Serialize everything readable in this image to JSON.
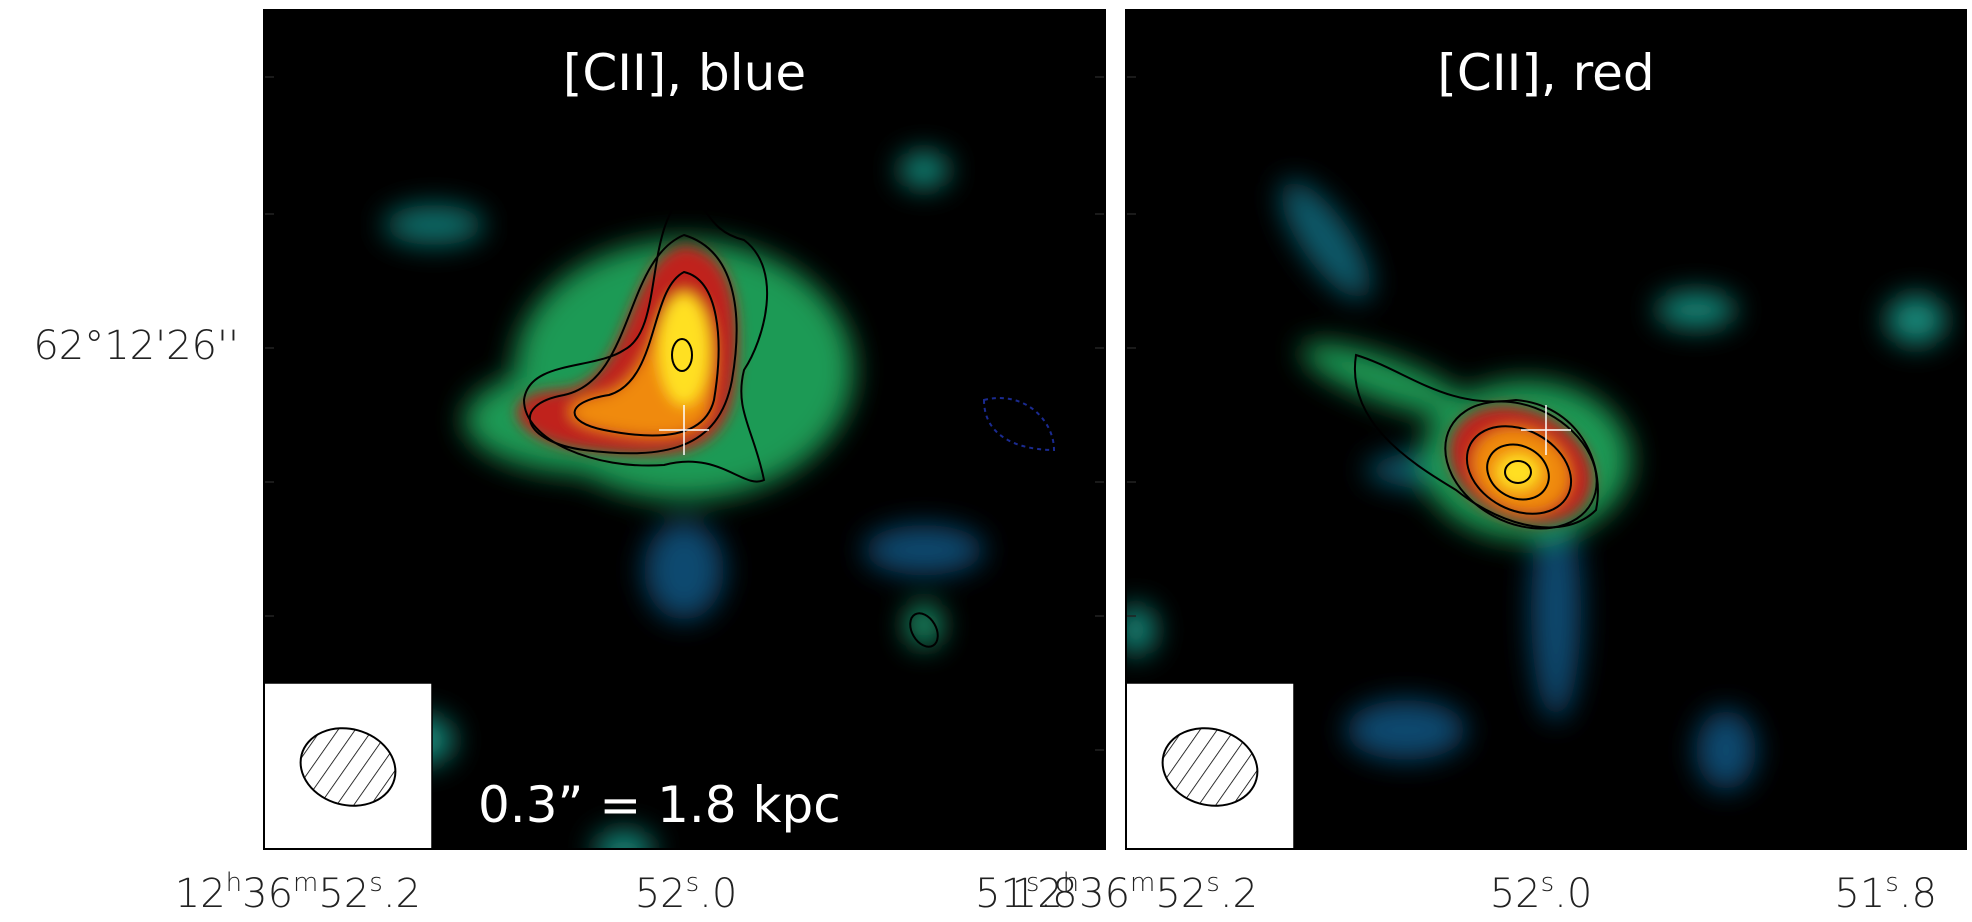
{
  "y_label": "62°12'26''",
  "panels": [
    {
      "title": "[CII], blue",
      "scale_label": "0.3” = 1.8 kpc",
      "x_labels": [
        [
          {
            "text": "12"
          },
          {
            "text": "h",
            "sup": true
          },
          {
            "text": "36"
          },
          {
            "text": "m",
            "sup": true
          },
          {
            "text": "52"
          },
          {
            "text": "s",
            "sup": true
          },
          {
            "text": ".2"
          }
        ],
        [
          {
            "text": "52"
          },
          {
            "text": "s",
            "sup": true
          },
          {
            "text": ".0"
          }
        ],
        [
          {
            "text": "51"
          },
          {
            "text": "s",
            "sup": true
          },
          {
            "text": ".8"
          }
        ]
      ]
    },
    {
      "title": "[CII], red",
      "x_labels": [
        [
          {
            "text": "12"
          },
          {
            "text": "h",
            "sup": true
          },
          {
            "text": "36"
          },
          {
            "text": "m",
            "sup": true
          },
          {
            "text": "52"
          },
          {
            "text": "s",
            "sup": true
          },
          {
            "text": ".2"
          }
        ],
        [
          {
            "text": "52"
          },
          {
            "text": "s",
            "sup": true
          },
          {
            "text": ".0"
          }
        ],
        [
          {
            "text": "51"
          },
          {
            "text": "s",
            "sup": true
          },
          {
            "text": ".8"
          }
        ]
      ]
    }
  ]
}
